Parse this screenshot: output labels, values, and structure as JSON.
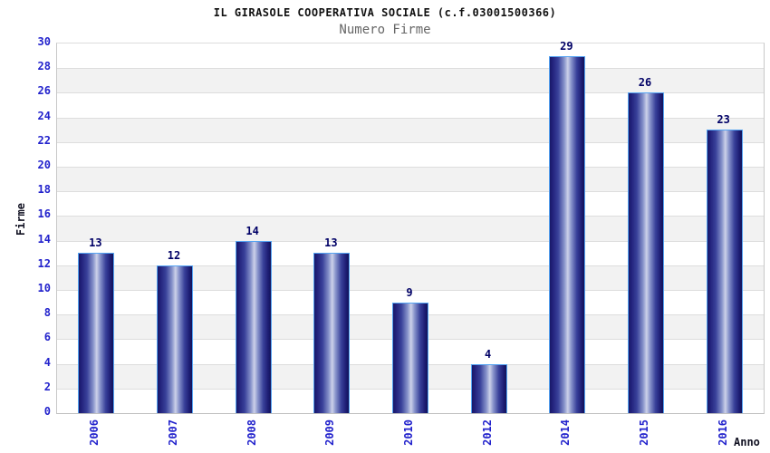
{
  "header": {
    "title": "IL GIRASOLE COOPERATIVA SOCIALE (c.f.03001500366)",
    "subtitle": "Numero Firme"
  },
  "chart_data": {
    "type": "bar",
    "title": "IL GIRASOLE COOPERATIVA SOCIALE (c.f.03001500366)",
    "subtitle": "Numero Firme",
    "categories": [
      "2006",
      "2007",
      "2008",
      "2009",
      "2010",
      "2012",
      "2014",
      "2015",
      "2016"
    ],
    "values": [
      13,
      12,
      14,
      13,
      9,
      4,
      29,
      26,
      23
    ],
    "xlabel": "Anno",
    "ylabel": "Firme",
    "ylim": [
      0,
      30
    ],
    "ytick_step": 2,
    "grid": true,
    "legend": "none",
    "band_fill": "alternating horizontal stripes every 2 units"
  },
  "colors": {
    "tick_label": "#2222cc",
    "value_label": "#000066",
    "bar_border": "#54a3f2",
    "bar_dark": "#181868",
    "bar_highlight": "#ccd1e9",
    "band_gray": "#f2f2f2",
    "gridline": "#dddddd",
    "axis_line": "#bfbfbf",
    "title": "#111111",
    "subtitle": "#666666",
    "background": "#ffffff"
  }
}
